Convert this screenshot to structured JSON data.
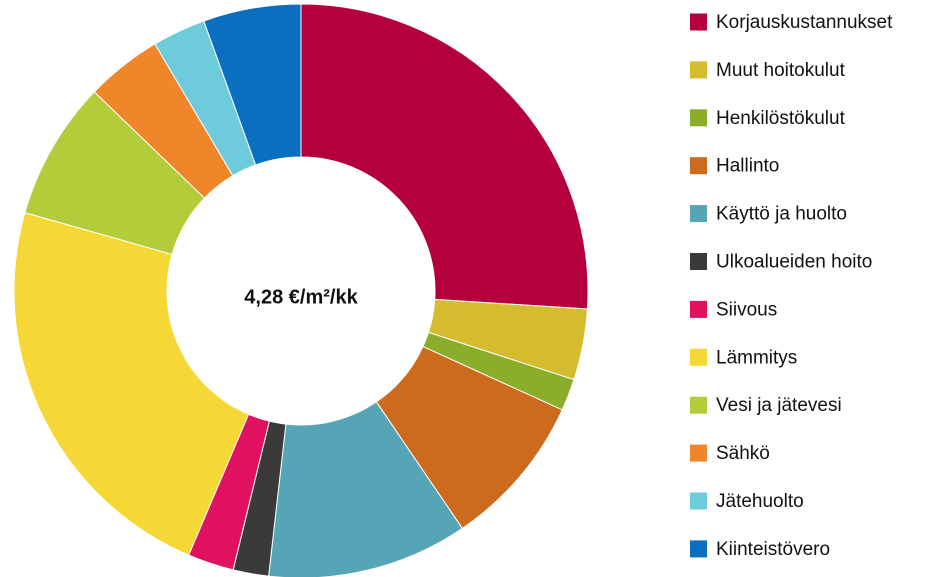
{
  "chart_data": {
    "type": "donut",
    "center_label": "4,28 €/m²/kk",
    "categories": [
      "Korjauskustannukset",
      "Muut hoitokulut",
      "Henkilöstökulut",
      "Hallinto",
      "Käyttö ja huolto",
      "Ulkoalueiden hoito",
      "Siivous",
      "Lämmitys",
      "Vesi ja jätevesi",
      "Sähkö",
      "Jätehuolto",
      "Kiinteistövero"
    ],
    "values": [
      26,
      4,
      1.8,
      8.7,
      11.3,
      2,
      2.6,
      23,
      7.8,
      4.3,
      3,
      5.5
    ],
    "colors": [
      "#b5003e",
      "#d4bc2e",
      "#8aae2b",
      "#cc6a1e",
      "#55a5b6",
      "#3a3a3a",
      "#e0115f",
      "#f5d835",
      "#b2cc3a",
      "#f0862a",
      "#6dcbdc",
      "#0a6fbf"
    ],
    "legend": "right"
  }
}
